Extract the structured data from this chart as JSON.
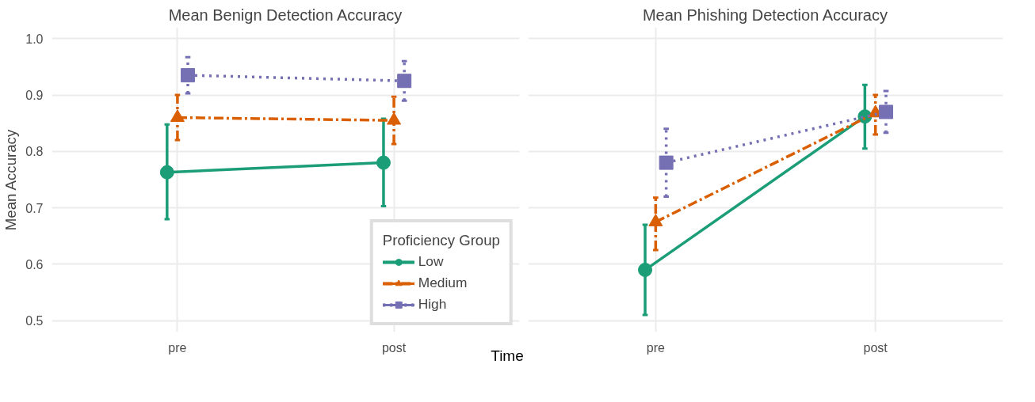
{
  "chart_data": [
    {
      "type": "line",
      "title": "Mean Benign Detection Accuracy",
      "ylabel": "Mean Accuracy",
      "xlabel": "Time",
      "categories": [
        "pre",
        "post"
      ],
      "ylim": [
        0.48,
        1.02
      ],
      "yticks": [
        0.5,
        0.6,
        0.7,
        0.8,
        0.9,
        {
          "value": 1,
          "label": "1.0"
        }
      ],
      "grid": true,
      "legend": "bottom right",
      "legend_title": "Proficiency Group",
      "series": [
        {
          "name": "Low",
          "color": "#1b9e77",
          "marker": "circle",
          "line_style": "solid",
          "values": [
            0.763,
            0.78
          ],
          "errors": [
            [
              0.68,
              0.848
            ],
            [
              0.703,
              0.858
            ]
          ]
        },
        {
          "name": "Medium",
          "color": "#d95f02",
          "marker": "triangle",
          "line_style": "dashed",
          "values": [
            0.86,
            0.855
          ],
          "errors": [
            [
              0.82,
              0.9
            ],
            [
              0.813,
              0.897
            ]
          ]
        },
        {
          "name": "High",
          "color": "#7570b3",
          "marker": "square",
          "line_style": "dotted",
          "values": [
            0.935,
            0.925
          ],
          "errors": [
            [
              0.903,
              0.967
            ],
            [
              0.89,
              0.96
            ]
          ]
        }
      ]
    },
    {
      "type": "line",
      "title": "Mean Phishing Detection Accuracy",
      "categories": [
        "pre",
        "post"
      ],
      "ylim": [
        0.48,
        1.02
      ],
      "yticks": [
        0.5,
        0.6,
        0.7,
        0.8,
        0.9,
        1
      ],
      "grid": true,
      "tick_labels": "x",
      "series": [
        {
          "color": "#1b9e77",
          "marker": "circle",
          "line_style": "solid",
          "values": [
            0.59,
            0.862
          ],
          "errors": [
            [
              0.51,
              0.67
            ],
            [
              0.805,
              0.918
            ]
          ]
        },
        {
          "color": "#d95f02",
          "marker": "triangle",
          "line_style": "dashed",
          "values": [
            0.675,
            0.868
          ],
          "errors": [
            [
              0.625,
              0.718
            ],
            [
              0.83,
              0.9
            ]
          ]
        },
        {
          "color": "#7570b3",
          "marker": "square",
          "line_style": "dotted",
          "values": [
            0.78,
            0.87
          ],
          "errors": [
            [
              0.72,
              0.84
            ],
            [
              0.833,
              0.907
            ]
          ]
        }
      ]
    }
  ]
}
